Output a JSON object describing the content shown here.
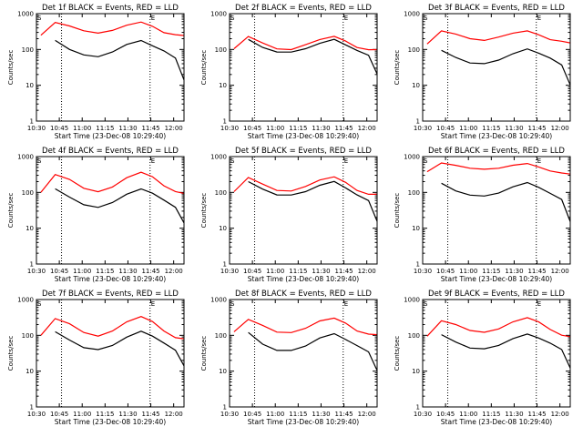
{
  "page": {
    "background": "#ffffff"
  },
  "colors": {
    "events": "#000000",
    "lld": "#ff0000",
    "axes": "#000000"
  },
  "chart_data": [
    {
      "type": "line",
      "title": "Det 1f BLACK = Events, RED = LLD",
      "xlabel": "Start Time (23-Dec-08 10:29:40)",
      "ylabel": "Counts/sec",
      "yscale": "log",
      "ylim": [
        1,
        1000
      ],
      "xlim": [
        0,
        100
      ],
      "marker_S": "S",
      "marker_E": "E",
      "x_ticks": [
        "10:30",
        "10:45",
        "11:00",
        "11:15",
        "11:30",
        "11:45",
        "12:00"
      ],
      "y_ticks": [
        "1",
        "10",
        "100",
        "1000"
      ],
      "vlines": [
        17,
        77
      ],
      "series": [
        {
          "name": "LLD",
          "values": [
            250,
            540,
            430,
            330,
            300,
            360,
            480,
            560,
            420,
            290,
            270,
            260
          ]
        },
        {
          "name": "Events",
          "values": [
            160,
            170,
            95,
            70,
            66,
            90,
            140,
            170,
            120,
            90,
            60,
            15
          ]
        }
      ]
    },
    {
      "type": "line",
      "title": "Det 2f BLACK = Events, RED = LLD",
      "xlabel": "Start Time (23-Dec-08 10:29:40)",
      "ylabel": "Counts/sec",
      "yscale": "log",
      "ylim": [
        1,
        1000
      ],
      "xlim": [
        0,
        100
      ],
      "marker_S": "S",
      "marker_E": "E",
      "x_ticks": [
        "10:30",
        "10:45",
        "11:00",
        "11:15",
        "11:30",
        "11:45",
        "12:00"
      ],
      "y_ticks": [
        "1",
        "10",
        "100",
        "1000"
      ],
      "vlines": [
        17,
        77
      ],
      "series": [
        {
          "name": "LLD",
          "values": [
            100,
            230,
            160,
            110,
            100,
            130,
            180,
            230,
            180,
            120,
            100,
            95
          ]
        },
        {
          "name": "Events",
          "values": [
            130,
            190,
            120,
            90,
            85,
            100,
            140,
            190,
            140,
            100,
            70,
            20
          ]
        }
      ]
    },
    {
      "type": "line",
      "title": "Det 3f BLACK = Events, RED = LLD",
      "xlabel": "Start Time (23-Dec-08 10:29:40)",
      "ylabel": "Counts/sec",
      "yscale": "log",
      "ylim": [
        1,
        1000
      ],
      "xlim": [
        0,
        100
      ],
      "marker_S": "S",
      "marker_E": "E",
      "x_ticks": [
        "10:30",
        "10:45",
        "11:00",
        "11:15",
        "11:30",
        "11:45",
        "12:00"
      ],
      "y_ticks": [
        "1",
        "10",
        "100",
        "1000"
      ],
      "vlines": [
        17,
        77
      ],
      "series": [
        {
          "name": "LLD",
          "values": [
            150,
            350,
            270,
            190,
            170,
            220,
            300,
            350,
            260,
            180,
            160,
            150
          ]
        },
        {
          "name": "Events",
          "values": [
            90,
            100,
            60,
            40,
            38,
            50,
            80,
            110,
            80,
            55,
            35,
            10
          ]
        }
      ]
    },
    {
      "type": "line",
      "title": "Det 4f BLACK = Events, RED = LLD",
      "xlabel": "Start Time (23-Dec-08 10:29:40)",
      "ylabel": "Counts/sec",
      "yscale": "log",
      "ylim": [
        1,
        1000
      ],
      "xlim": [
        0,
        100
      ],
      "marker_S": "S",
      "marker_E": "E",
      "x_ticks": [
        "10:30",
        "10:45",
        "11:00",
        "11:15",
        "11:30",
        "11:45",
        "12:00"
      ],
      "y_ticks": [
        "1",
        "10",
        "100",
        "1000"
      ],
      "vlines": [
        17,
        77
      ],
      "series": [
        {
          "name": "LLD",
          "values": [
            100,
            300,
            220,
            130,
            110,
            150,
            260,
            350,
            260,
            150,
            110,
            100
          ]
        },
        {
          "name": "Events",
          "values": [
            110,
            120,
            70,
            45,
            40,
            55,
            90,
            120,
            90,
            60,
            40,
            15
          ]
        }
      ]
    },
    {
      "type": "line",
      "title": "Det 5f BLACK = Events, RED = LLD",
      "xlabel": "Start Time (23-Dec-08 10:29:40)",
      "ylabel": "Counts/sec",
      "yscale": "log",
      "ylim": [
        1,
        1000
      ],
      "xlim": [
        0,
        100
      ],
      "marker_S": "S",
      "marker_E": "E",
      "x_ticks": [
        "10:30",
        "10:45",
        "11:00",
        "11:15",
        "11:30",
        "11:45",
        "12:00"
      ],
      "y_ticks": [
        "1",
        "10",
        "100",
        "1000"
      ],
      "vlines": [
        17,
        77
      ],
      "series": [
        {
          "name": "LLD",
          "values": [
            100,
            260,
            180,
            120,
            110,
            140,
            210,
            270,
            200,
            120,
            90,
            85
          ]
        },
        {
          "name": "Events",
          "values": [
            140,
            200,
            130,
            90,
            85,
            100,
            150,
            200,
            140,
            90,
            60,
            15
          ]
        }
      ]
    },
    {
      "type": "line",
      "title": "Det 6f BLACK = Events, RED = LLD",
      "xlabel": "Start Time (23-Dec-08 10:29:40)",
      "ylabel": "Counts/sec",
      "yscale": "log",
      "ylim": [
        1,
        1000
      ],
      "xlim": [
        0,
        100
      ],
      "marker_S": "S",
      "marker_E": "E",
      "x_ticks": [
        "10:30",
        "10:45",
        "11:00",
        "11:15",
        "11:30",
        "11:45",
        "12:00"
      ],
      "y_ticks": [
        "1",
        "10",
        "100",
        "1000"
      ],
      "vlines": [
        17,
        77
      ],
      "series": [
        {
          "name": "LLD",
          "values": [
            400,
            700,
            570,
            450,
            420,
            470,
            600,
            680,
            520,
            380,
            330,
            320
          ]
        },
        {
          "name": "Events",
          "values": [
            190,
            190,
            110,
            80,
            75,
            95,
            150,
            200,
            140,
            90,
            60,
            15
          ]
        }
      ]
    },
    {
      "type": "line",
      "title": "Det 7f BLACK = Events, RED = LLD",
      "xlabel": "Start Time (23-Dec-08 10:29:40)",
      "ylabel": "Counts/sec",
      "yscale": "log",
      "ylim": [
        1,
        1000
      ],
      "xlim": [
        0,
        100
      ],
      "marker_S": "S",
      "marker_E": "E",
      "x_ticks": [
        "10:30",
        "10:45",
        "11:00",
        "11:15",
        "11:30",
        "11:45",
        "12:00"
      ],
      "y_ticks": [
        "1",
        "10",
        "100",
        "1000"
      ],
      "vlines": [
        17,
        77
      ],
      "series": [
        {
          "name": "LLD",
          "values": [
            100,
            280,
            200,
            120,
            100,
            140,
            240,
            320,
            230,
            130,
            90,
            85
          ]
        },
        {
          "name": "Events",
          "values": [
            110,
            120,
            70,
            45,
            42,
            55,
            90,
            125,
            90,
            60,
            40,
            15
          ]
        }
      ]
    },
    {
      "type": "line",
      "title": "Det 8f BLACK = Events, RED = LLD",
      "xlabel": "Start Time (23-Dec-08 10:29:40)",
      "ylabel": "Counts/sec",
      "yscale": "log",
      "ylim": [
        1,
        1000
      ],
      "xlim": [
        0,
        100
      ],
      "marker_S": "S",
      "marker_E": "E",
      "x_ticks": [
        "10:30",
        "10:45",
        "11:00",
        "11:15",
        "11:30",
        "11:45",
        "12:00"
      ],
      "y_ticks": [
        "1",
        "10",
        "100",
        "1000"
      ],
      "vlines": [
        17,
        77
      ],
      "series": [
        {
          "name": "LLD",
          "values": [
            120,
            280,
            200,
            130,
            120,
            150,
            240,
            300,
            230,
            140,
            110,
            100
          ]
        },
        {
          "name": "Events",
          "values": [
            70,
            120,
            60,
            40,
            38,
            48,
            80,
            110,
            80,
            55,
            35,
            10
          ]
        }
      ]
    },
    {
      "type": "line",
      "title": "Det 9f BLACK = Events, RED = LLD",
      "xlabel": "Start Time (23-Dec-08 10:29:40)",
      "ylabel": "Counts/sec",
      "yscale": "log",
      "ylim": [
        1,
        1000
      ],
      "xlim": [
        0,
        100
      ],
      "marker_S": "S",
      "marker_E": "E",
      "x_ticks": [
        "10:30",
        "10:45",
        "11:00",
        "11:15",
        "11:30",
        "11:45",
        "12:00"
      ],
      "y_ticks": [
        "1",
        "10",
        "100",
        "1000"
      ],
      "vlines": [
        17,
        77
      ],
      "series": [
        {
          "name": "LLD",
          "values": [
            100,
            270,
            200,
            130,
            115,
            150,
            250,
            330,
            240,
            140,
            95,
            90
          ]
        },
        {
          "name": "Events",
          "values": [
            100,
            110,
            65,
            42,
            40,
            52,
            85,
            115,
            85,
            58,
            38,
            12
          ]
        }
      ]
    }
  ]
}
